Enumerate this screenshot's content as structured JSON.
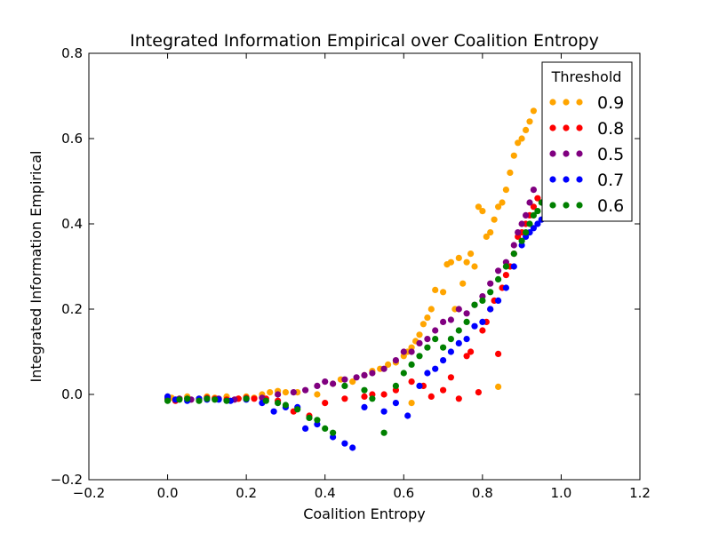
{
  "chart_data": {
    "type": "scatter",
    "title": "Integrated Information Empirical over Coalition Entropy",
    "xlabel": "Coalition Entropy",
    "ylabel": "Integrated Information Empirical",
    "xlim": [
      -0.2,
      1.2
    ],
    "ylim": [
      -0.2,
      0.8
    ],
    "xticks": [
      "−0.2",
      "0.0",
      "0.2",
      "0.4",
      "0.6",
      "0.8",
      "1.0",
      "1.2"
    ],
    "yticks": [
      "−0.2",
      "0.0",
      "0.2",
      "0.4",
      "0.6",
      "0.8"
    ],
    "grid": false,
    "legend": {
      "title": "Threshold",
      "position": "top-right"
    },
    "series": [
      {
        "name": "0.9",
        "color": "#ffa500",
        "points": [
          [
            0.0,
            -0.005
          ],
          [
            0.01,
            -0.008
          ],
          [
            0.03,
            -0.01
          ],
          [
            0.05,
            -0.005
          ],
          [
            0.08,
            -0.01
          ],
          [
            0.1,
            -0.005
          ],
          [
            0.12,
            -0.008
          ],
          [
            0.15,
            -0.005
          ],
          [
            0.18,
            -0.01
          ],
          [
            0.2,
            -0.005
          ],
          [
            0.22,
            -0.008
          ],
          [
            0.24,
            0.0
          ],
          [
            0.26,
            0.005
          ],
          [
            0.28,
            0.008
          ],
          [
            0.3,
            0.005
          ],
          [
            0.33,
            0.005
          ],
          [
            0.38,
            0.0
          ],
          [
            0.42,
            0.025
          ],
          [
            0.44,
            0.035
          ],
          [
            0.47,
            0.03
          ],
          [
            0.5,
            0.045
          ],
          [
            0.52,
            0.055
          ],
          [
            0.54,
            0.06
          ],
          [
            0.56,
            0.07
          ],
          [
            0.58,
            0.075
          ],
          [
            0.6,
            0.09
          ],
          [
            0.61,
            0.1
          ],
          [
            0.62,
            0.11
          ],
          [
            0.63,
            0.125
          ],
          [
            0.64,
            0.14
          ],
          [
            0.65,
            0.165
          ],
          [
            0.66,
            0.18
          ],
          [
            0.67,
            0.2
          ],
          [
            0.68,
            0.245
          ],
          [
            0.7,
            0.24
          ],
          [
            0.71,
            0.305
          ],
          [
            0.72,
            0.31
          ],
          [
            0.73,
            0.2
          ],
          [
            0.74,
            0.32
          ],
          [
            0.75,
            0.26
          ],
          [
            0.76,
            0.31
          ],
          [
            0.77,
            0.33
          ],
          [
            0.78,
            0.3
          ],
          [
            0.79,
            0.44
          ],
          [
            0.8,
            0.43
          ],
          [
            0.81,
            0.37
          ],
          [
            0.82,
            0.38
          ],
          [
            0.83,
            0.41
          ],
          [
            0.84,
            0.44
          ],
          [
            0.85,
            0.45
          ],
          [
            0.86,
            0.48
          ],
          [
            0.87,
            0.52
          ],
          [
            0.88,
            0.56
          ],
          [
            0.89,
            0.59
          ],
          [
            0.9,
            0.6
          ],
          [
            0.91,
            0.62
          ],
          [
            0.92,
            0.64
          ],
          [
            0.93,
            0.665
          ],
          [
            0.84,
            0.018
          ],
          [
            0.62,
            -0.02
          ]
        ]
      },
      {
        "name": "0.8",
        "color": "#ff0000",
        "points": [
          [
            0.0,
            -0.01
          ],
          [
            0.02,
            -0.015
          ],
          [
            0.05,
            -0.01
          ],
          [
            0.08,
            -0.012
          ],
          [
            0.1,
            -0.008
          ],
          [
            0.12,
            -0.01
          ],
          [
            0.15,
            -0.012
          ],
          [
            0.18,
            -0.01
          ],
          [
            0.2,
            -0.008
          ],
          [
            0.22,
            -0.01
          ],
          [
            0.25,
            -0.01
          ],
          [
            0.28,
            -0.015
          ],
          [
            0.32,
            -0.04
          ],
          [
            0.36,
            -0.05
          ],
          [
            0.4,
            -0.02
          ],
          [
            0.45,
            -0.01
          ],
          [
            0.5,
            -0.005
          ],
          [
            0.52,
            0.0
          ],
          [
            0.55,
            0.0
          ],
          [
            0.58,
            0.01
          ],
          [
            0.62,
            0.03
          ],
          [
            0.65,
            0.02
          ],
          [
            0.67,
            -0.005
          ],
          [
            0.7,
            0.01
          ],
          [
            0.72,
            0.04
          ],
          [
            0.74,
            -0.01
          ],
          [
            0.76,
            0.09
          ],
          [
            0.77,
            0.1
          ],
          [
            0.79,
            0.005
          ],
          [
            0.8,
            0.15
          ],
          [
            0.81,
            0.17
          ],
          [
            0.82,
            0.2
          ],
          [
            0.83,
            0.22
          ],
          [
            0.84,
            0.095
          ],
          [
            0.85,
            0.25
          ],
          [
            0.86,
            0.28
          ],
          [
            0.87,
            0.3
          ],
          [
            0.88,
            0.33
          ],
          [
            0.89,
            0.37
          ],
          [
            0.9,
            0.38
          ],
          [
            0.91,
            0.4
          ],
          [
            0.92,
            0.42
          ],
          [
            0.93,
            0.44
          ],
          [
            0.94,
            0.46
          ]
        ]
      },
      {
        "name": "0.5",
        "color": "#800080",
        "points": [
          [
            0.0,
            -0.01
          ],
          [
            0.03,
            -0.01
          ],
          [
            0.06,
            -0.012
          ],
          [
            0.1,
            -0.01
          ],
          [
            0.13,
            -0.01
          ],
          [
            0.17,
            -0.012
          ],
          [
            0.2,
            -0.01
          ],
          [
            0.24,
            -0.008
          ],
          [
            0.28,
            0.0
          ],
          [
            0.32,
            0.005
          ],
          [
            0.35,
            0.01
          ],
          [
            0.38,
            0.02
          ],
          [
            0.4,
            0.03
          ],
          [
            0.42,
            0.025
          ],
          [
            0.45,
            0.035
          ],
          [
            0.48,
            0.04
          ],
          [
            0.5,
            0.045
          ],
          [
            0.52,
            0.05
          ],
          [
            0.55,
            0.06
          ],
          [
            0.58,
            0.08
          ],
          [
            0.6,
            0.1
          ],
          [
            0.62,
            0.1
          ],
          [
            0.64,
            0.12
          ],
          [
            0.66,
            0.13
          ],
          [
            0.68,
            0.15
          ],
          [
            0.7,
            0.17
          ],
          [
            0.72,
            0.175
          ],
          [
            0.74,
            0.2
          ],
          [
            0.76,
            0.19
          ],
          [
            0.78,
            0.21
          ],
          [
            0.8,
            0.23
          ],
          [
            0.82,
            0.26
          ],
          [
            0.84,
            0.29
          ],
          [
            0.86,
            0.31
          ],
          [
            0.88,
            0.35
          ],
          [
            0.89,
            0.38
          ],
          [
            0.9,
            0.4
          ],
          [
            0.91,
            0.42
          ],
          [
            0.92,
            0.45
          ],
          [
            0.93,
            0.48
          ]
        ]
      },
      {
        "name": "0.7",
        "color": "#0000ff",
        "points": [
          [
            0.0,
            -0.005
          ],
          [
            0.02,
            -0.012
          ],
          [
            0.05,
            -0.015
          ],
          [
            0.08,
            -0.01
          ],
          [
            0.1,
            -0.012
          ],
          [
            0.13,
            -0.012
          ],
          [
            0.16,
            -0.015
          ],
          [
            0.2,
            -0.012
          ],
          [
            0.24,
            -0.02
          ],
          [
            0.27,
            -0.04
          ],
          [
            0.3,
            -0.03
          ],
          [
            0.33,
            -0.03
          ],
          [
            0.35,
            -0.08
          ],
          [
            0.38,
            -0.07
          ],
          [
            0.42,
            -0.1
          ],
          [
            0.45,
            -0.115
          ],
          [
            0.47,
            -0.125
          ],
          [
            0.5,
            -0.03
          ],
          [
            0.55,
            -0.04
          ],
          [
            0.58,
            -0.02
          ],
          [
            0.61,
            -0.05
          ],
          [
            0.64,
            0.02
          ],
          [
            0.66,
            0.05
          ],
          [
            0.68,
            0.06
          ],
          [
            0.7,
            0.08
          ],
          [
            0.72,
            0.1
          ],
          [
            0.74,
            0.12
          ],
          [
            0.76,
            0.13
          ],
          [
            0.78,
            0.16
          ],
          [
            0.8,
            0.17
          ],
          [
            0.82,
            0.2
          ],
          [
            0.84,
            0.22
          ],
          [
            0.86,
            0.25
          ],
          [
            0.88,
            0.3
          ],
          [
            0.9,
            0.35
          ],
          [
            0.91,
            0.37
          ],
          [
            0.92,
            0.38
          ],
          [
            0.93,
            0.39
          ],
          [
            0.94,
            0.4
          ],
          [
            0.95,
            0.41
          ],
          [
            0.96,
            0.42
          ]
        ]
      },
      {
        "name": "0.6",
        "color": "#008000",
        "points": [
          [
            0.0,
            -0.015
          ],
          [
            0.03,
            -0.012
          ],
          [
            0.05,
            -0.01
          ],
          [
            0.08,
            -0.015
          ],
          [
            0.1,
            -0.01
          ],
          [
            0.12,
            -0.012
          ],
          [
            0.15,
            -0.015
          ],
          [
            0.2,
            -0.01
          ],
          [
            0.25,
            -0.015
          ],
          [
            0.28,
            -0.02
          ],
          [
            0.3,
            -0.025
          ],
          [
            0.33,
            -0.035
          ],
          [
            0.36,
            -0.055
          ],
          [
            0.38,
            -0.06
          ],
          [
            0.4,
            -0.08
          ],
          [
            0.42,
            -0.09
          ],
          [
            0.45,
            0.02
          ],
          [
            0.5,
            0.01
          ],
          [
            0.52,
            -0.01
          ],
          [
            0.55,
            -0.09
          ],
          [
            0.58,
            0.02
          ],
          [
            0.6,
            0.05
          ],
          [
            0.62,
            0.07
          ],
          [
            0.64,
            0.09
          ],
          [
            0.66,
            0.11
          ],
          [
            0.68,
            0.13
          ],
          [
            0.7,
            0.11
          ],
          [
            0.72,
            0.13
          ],
          [
            0.74,
            0.15
          ],
          [
            0.76,
            0.17
          ],
          [
            0.78,
            0.21
          ],
          [
            0.8,
            0.22
          ],
          [
            0.82,
            0.24
          ],
          [
            0.84,
            0.27
          ],
          [
            0.86,
            0.3
          ],
          [
            0.88,
            0.33
          ],
          [
            0.9,
            0.36
          ],
          [
            0.91,
            0.38
          ],
          [
            0.92,
            0.4
          ],
          [
            0.93,
            0.42
          ],
          [
            0.94,
            0.43
          ],
          [
            0.95,
            0.45
          ]
        ]
      }
    ]
  }
}
